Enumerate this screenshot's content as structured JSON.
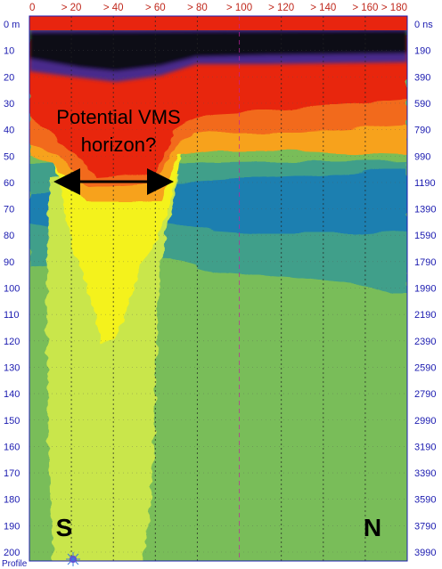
{
  "top_axis": {
    "labels": [
      "0",
      "> 20",
      "> 40",
      "> 60",
      "> 80",
      "> 100",
      "> 120",
      "> 140",
      "> 160",
      "> 180"
    ]
  },
  "left_axis": {
    "labels": [
      "0 m",
      "10",
      "20",
      "30",
      "40",
      "50",
      "60",
      "70",
      "80",
      "90",
      "100",
      "110",
      "120",
      "130",
      "140",
      "150",
      "160",
      "170",
      "180",
      "190",
      "200"
    ]
  },
  "right_axis": {
    "labels": [
      "0 ns",
      "190",
      "390",
      "590",
      "790",
      "990",
      "1190",
      "1390",
      "1590",
      "1790",
      "1990",
      "2190",
      "2390",
      "2590",
      "2790",
      "2990",
      "3190",
      "3390",
      "3590",
      "3790",
      "3990"
    ]
  },
  "annotation": {
    "line1": "Potential VMS",
    "line2": "horizon?"
  },
  "direction": {
    "left": "S",
    "right": "N"
  },
  "profile_label": "Profile",
  "colors": {
    "red": "#e8250f",
    "dark": "#0b0b12",
    "purple": "#4a2a8c",
    "orange": "#f26a1c",
    "amber": "#f7a21a",
    "yellow": "#f4f21d",
    "ygreen": "#c9e64b",
    "green": "#79bd59",
    "teal": "#3f9f8a",
    "blue": "#1e7fb0",
    "axis_text": "#1b1bb0",
    "top_text": "#c0281c",
    "grid_black": "#222222",
    "grid_magenta": "#c020a0"
  }
}
